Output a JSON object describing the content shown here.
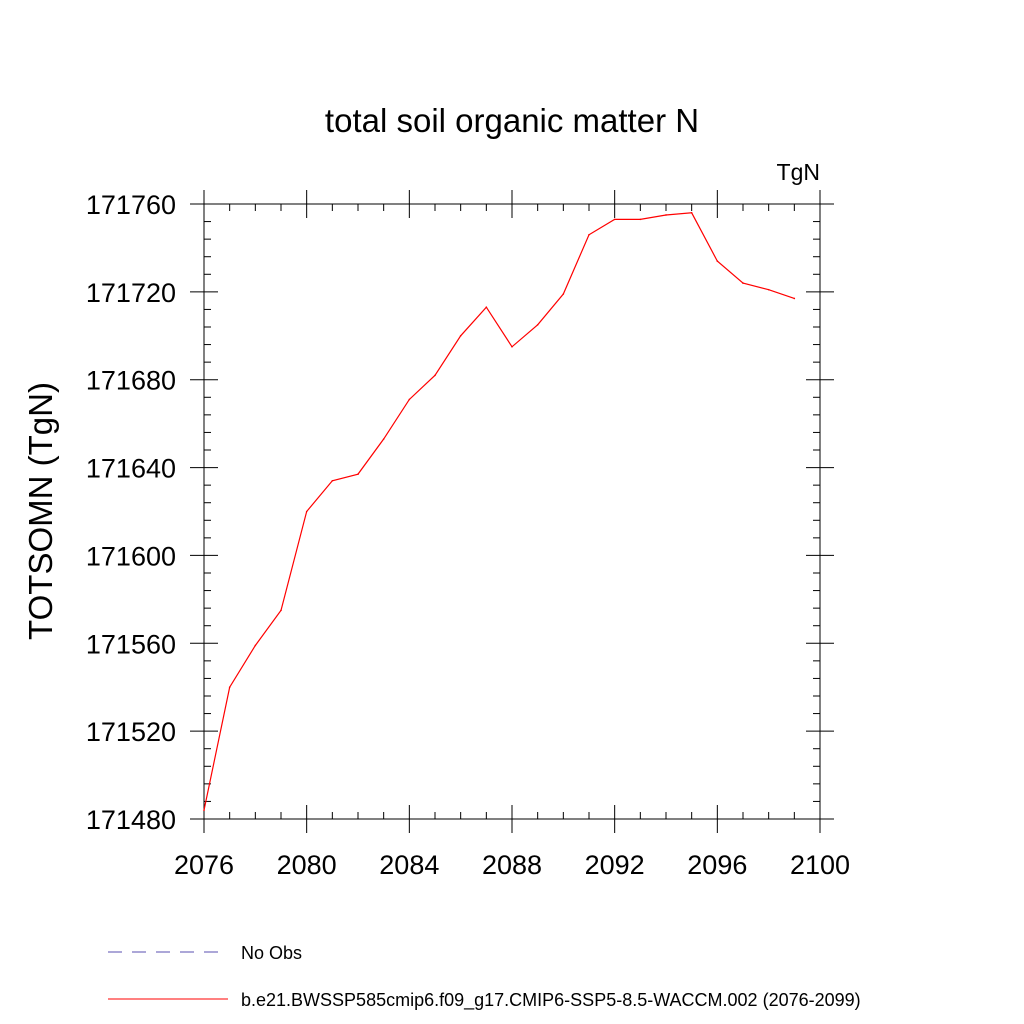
{
  "chart_data": {
    "type": "line",
    "title": "total soil organic matter N",
    "units_label": "TgN",
    "ylabel": "TOTSOMN  (TgN)",
    "xlabel": "",
    "xlim": [
      2076,
      2100
    ],
    "ylim": [
      171480,
      171760
    ],
    "x_ticks": [
      2076,
      2080,
      2084,
      2088,
      2092,
      2096,
      2100
    ],
    "y_ticks": [
      171480,
      171520,
      171560,
      171600,
      171640,
      171680,
      171720,
      171760
    ],
    "x_minor_step": 1,
    "y_minor_step": 8,
    "grid": false,
    "legend_position": "bottom",
    "series": [
      {
        "name": "b.e21.BWSSP585cmip6.f09_g17.CMIP6-SSP5-8.5-WACCM.002 (2076-2099)",
        "color": "#ff0000",
        "dash": "solid",
        "x": [
          2076,
          2077,
          2078,
          2079,
          2080,
          2081,
          2082,
          2083,
          2084,
          2085,
          2086,
          2087,
          2088,
          2089,
          2090,
          2091,
          2092,
          2093,
          2094,
          2095,
          2096,
          2097,
          2098,
          2099
        ],
        "y": [
          171484,
          171540,
          171559,
          171575,
          171620,
          171634,
          171637,
          171653,
          171671,
          171682,
          171700,
          171713,
          171695,
          171705,
          171719,
          171746,
          171753,
          171753,
          171755,
          171756,
          171734,
          171724,
          171721,
          171717
        ]
      },
      {
        "name": "No Obs",
        "color": "#5a4fb0",
        "dash": "dashed",
        "x": [],
        "y": []
      }
    ]
  }
}
